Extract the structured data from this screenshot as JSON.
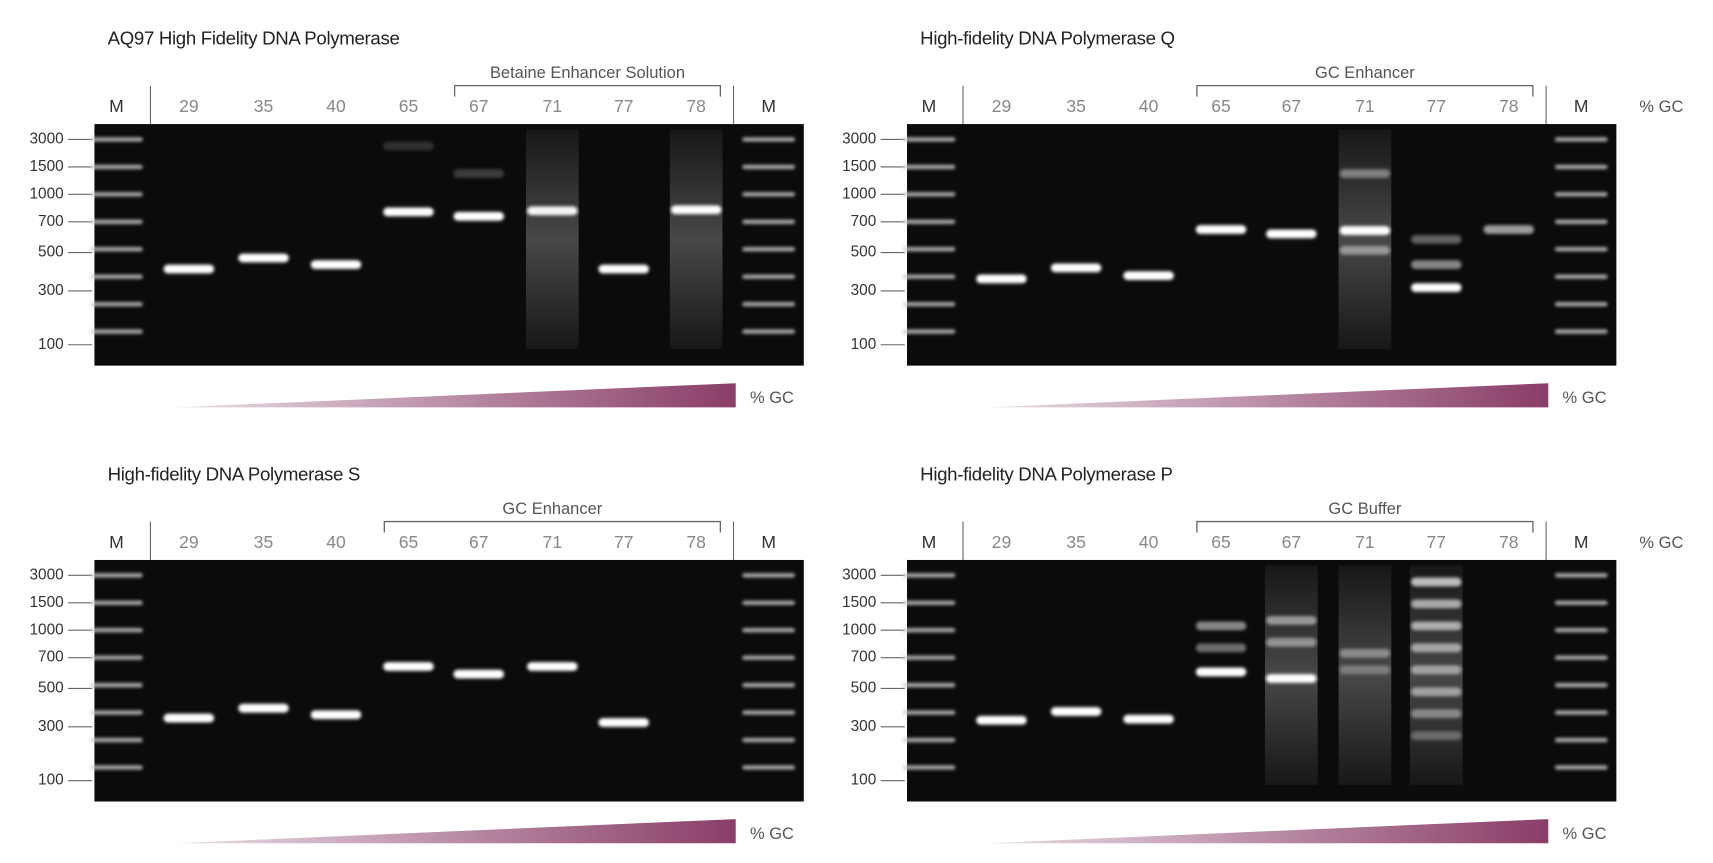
{
  "panels": [
    {
      "title": "AQ97 High Fidelity DNA Polymerase",
      "bracket_label": "Betaine Enhancer Solution",
      "lanes": [
        "M",
        "29",
        "35",
        "40",
        "65",
        "67",
        "71",
        "77",
        "78",
        "M"
      ],
      "ladder": [
        "3000",
        "1500",
        "1000",
        "700",
        "500",
        "300",
        "100"
      ],
      "gradient_label": "% GC"
    },
    {
      "title": "High-fidelity DNA Polymerase Q",
      "bracket_label": "GC Enhancer",
      "gc_label": "% GC",
      "lanes": [
        "M",
        "29",
        "35",
        "40",
        "65",
        "67",
        "71",
        "77",
        "78",
        "M"
      ],
      "ladder": [
        "3000",
        "1500",
        "1000",
        "700",
        "500",
        "300",
        "100"
      ],
      "gradient_label": "% GC"
    },
    {
      "title": "High-fidelity DNA Polymerase S",
      "bracket_label": "GC Enhancer",
      "lanes": [
        "M",
        "29",
        "35",
        "40",
        "65",
        "67",
        "71",
        "77",
        "78",
        "M"
      ],
      "ladder": [
        "3000",
        "1500",
        "1000",
        "700",
        "500",
        "300",
        "100"
      ],
      "gradient_label": "% GC"
    },
    {
      "title": "High-fidelity DNA Polymerase P",
      "bracket_label": "GC Buffer",
      "gc_label": "% GC",
      "lanes": [
        "M",
        "29",
        "35",
        "40",
        "65",
        "67",
        "71",
        "77",
        "78",
        "M"
      ],
      "ladder": [
        "3000",
        "1500",
        "1000",
        "700",
        "500",
        "300",
        "100"
      ],
      "gradient_label": "% GC"
    }
  ]
}
